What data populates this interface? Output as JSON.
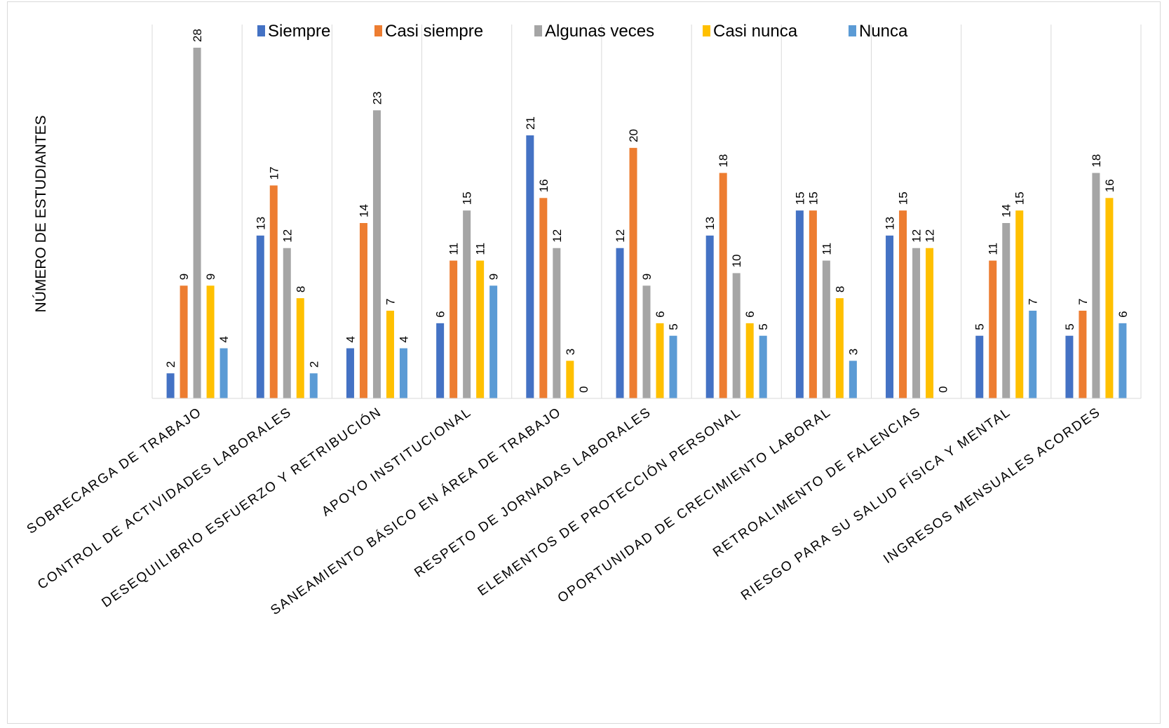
{
  "chart_data": {
    "type": "bar",
    "title": "",
    "xlabel": "",
    "ylabel": "NÚMERO DE ESTUDIANTES",
    "ylim": [
      0,
      30
    ],
    "grid": "vertical category separators",
    "legend_position": "top",
    "categories": [
      "SOBRECARGA DE TRABAJO",
      "CONTROL DE ACTIVIDADES LABORALES",
      "DESEQUILIBRIO ESFUERZO Y RETRIBUCIÓN",
      "APOYO INSTITUCIONAL",
      "SANEAMIENTO BÁSICO EN ÁREA DE TRABAJO",
      "RESPETO DE JORNADAS LABORALES",
      "ELEMENTOS DE PROTECCIÓN PERSONAL",
      "OPORTUNIDAD DE CRECIMIENTO LABORAL",
      "RETROALIMENTO DE FALENCIAS",
      "RIESGO PARA SU SALUD FÍSICA Y MENTAL",
      "INGRESOS MENSUALES ACORDES"
    ],
    "series": [
      {
        "name": "Siempre",
        "color": "#4472c4",
        "values": [
          2,
          13,
          4,
          6,
          21,
          12,
          13,
          15,
          13,
          5,
          5
        ]
      },
      {
        "name": "Casi siempre",
        "color": "#ed7d31",
        "values": [
          9,
          17,
          14,
          11,
          16,
          20,
          18,
          15,
          15,
          11,
          7
        ]
      },
      {
        "name": "Algunas veces",
        "color": "#a5a5a5",
        "values": [
          28,
          12,
          23,
          15,
          12,
          9,
          10,
          11,
          12,
          14,
          18
        ]
      },
      {
        "name": "Casi nunca",
        "color": "#ffc000",
        "values": [
          9,
          8,
          7,
          11,
          3,
          6,
          6,
          8,
          12,
          15,
          16
        ]
      },
      {
        "name": "Nunca",
        "color": "#5b9bd5",
        "values": [
          4,
          2,
          4,
          9,
          0,
          5,
          5,
          3,
          0,
          7,
          6
        ]
      }
    ]
  }
}
